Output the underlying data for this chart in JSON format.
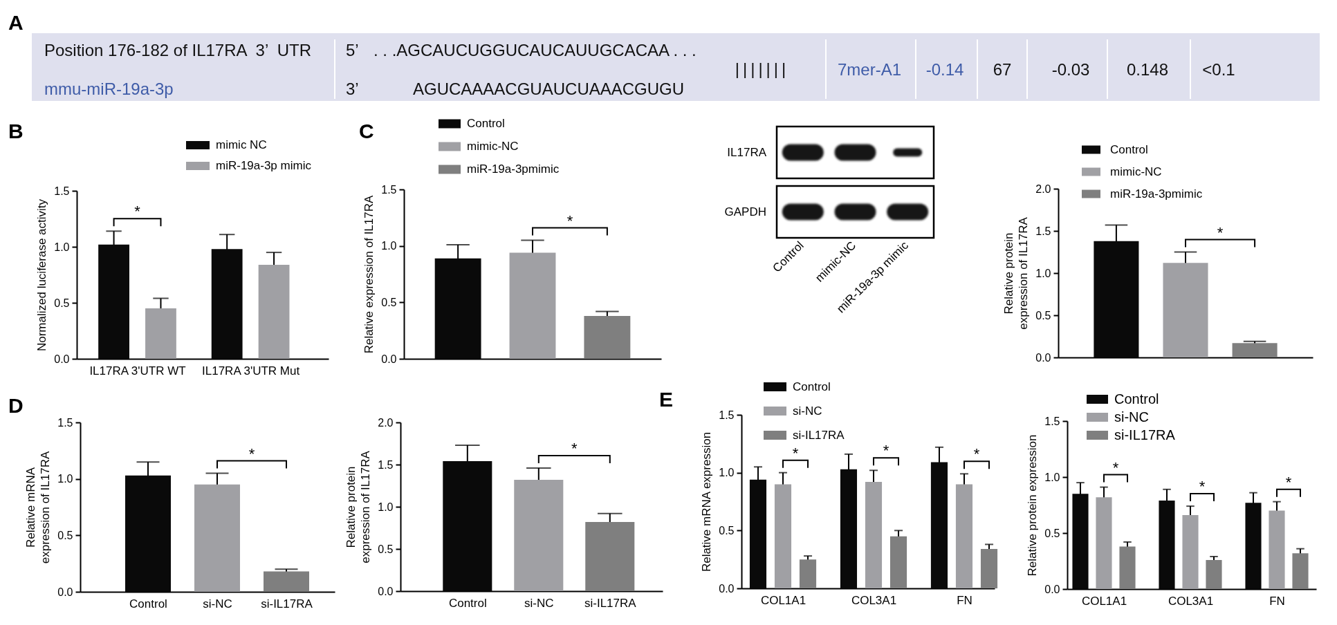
{
  "chart_data": [
    {
      "type": "other",
      "title": "A",
      "annotations": [
        "Position 176-182 of IL17RA  3’  UTR",
        "mmu-miR-19a-3p",
        "5’",
        ". . .AGCAUCUGGUCAUCAUUGCACAA . . .",
        "3’",
        "AGUCAAAACGUAUCUAAACGUGU",
        "|||||||",
        "7mer-A1",
        "-0.14",
        "67",
        "-0.03",
        "0.148",
        "<0.1"
      ]
    },
    {
      "type": "bar",
      "title": "B",
      "ylabel": "Normalized luciferase activity",
      "categories": [
        "IL17RA 3'UTR WT",
        "IL17RA 3'UTR Mut"
      ],
      "series": [
        {
          "name": "mimic NC",
          "color": "#0a0a0a",
          "values": [
            1.02,
            0.98
          ],
          "errors": [
            0.12,
            0.13
          ]
        },
        {
          "name": "miR-19a-3p mimic",
          "color": "#a0a0a4",
          "values": [
            0.45,
            0.84
          ],
          "errors": [
            0.09,
            0.11
          ]
        }
      ],
      "ylim": [
        0,
        1.5
      ],
      "yticks": [
        {
          "value": 0,
          "label": "0.0"
        },
        {
          "value": 0.5,
          "label": "0.5"
        },
        {
          "value": 1,
          "label": "1.0"
        },
        {
          "value": 1.5,
          "label": "1.5"
        }
      ],
      "legend": "top",
      "annotations": [
        "*"
      ]
    },
    {
      "type": "bar",
      "title": "C",
      "ylabel": "Relative expression of IL17RA",
      "categories": [
        null
      ],
      "series": [
        {
          "name": "Control",
          "color": "#0a0a0a",
          "values": [
            0.89
          ],
          "errors": [
            0.12
          ]
        },
        {
          "name": "mimic-NC",
          "color": "#a0a0a4",
          "values": [
            0.94
          ],
          "errors": [
            0.11
          ]
        },
        {
          "name": "miR-19a-3pmimic",
          "color": "#7f7f7f",
          "values": [
            0.38
          ],
          "errors": [
            0.04
          ]
        }
      ],
      "ylim": [
        0,
        1.5
      ],
      "yticks": [
        {
          "value": 0,
          "label": "0.0"
        },
        {
          "value": 0.5,
          "label": "0.5"
        },
        {
          "value": 1,
          "label": "1.0"
        },
        {
          "value": 1.5,
          "label": "1.5"
        }
      ],
      "legend": "top left",
      "annotations": [
        "*"
      ]
    },
    {
      "type": "other",
      "categories": [
        "Control",
        "mimic-NC",
        "miR-19a-3p mimic"
      ],
      "y_categories": [
        "IL17RA",
        "GAPDH"
      ]
    },
    {
      "type": "bar",
      "ylabel": "Relative protein expression of IL17RA",
      "categories": [
        null
      ],
      "series": [
        {
          "name": "Control",
          "color": "#0a0a0a",
          "values": [
            1.38
          ],
          "errors": [
            0.19
          ]
        },
        {
          "name": "mimic-NC",
          "color": "#a0a0a4",
          "values": [
            1.12
          ],
          "errors": [
            0.13
          ]
        },
        {
          "name": "miR-19a-3pmimic",
          "color": "#7f7f7f",
          "values": [
            0.17
          ],
          "errors": [
            0.02
          ]
        }
      ],
      "ylim": [
        0,
        2
      ],
      "yticks": [
        {
          "value": 0,
          "label": "0.0"
        },
        {
          "value": 0.5,
          "label": "0.5"
        },
        {
          "value": 1,
          "label": "1.0"
        },
        {
          "value": 1.5,
          "label": "1.5"
        },
        {
          "value": 2,
          "label": "2.0"
        }
      ],
      "legend": "top left",
      "annotations": [
        "*"
      ]
    },
    {
      "type": "bar",
      "title": "D",
      "ylabel": "Relative mRNA expression of IL17RA",
      "categories": [
        "Control",
        "si-NC",
        "si-IL17RA"
      ],
      "values": [
        1.03,
        0.95,
        0.18
      ],
      "errors": [
        0.12,
        0.1,
        0.02
      ],
      "colors": [
        "#0a0a0a",
        "#a0a0a4",
        "#7f7f7f"
      ],
      "ylim": [
        0,
        1.5
      ],
      "yticks": [
        {
          "value": 0,
          "label": "0.0"
        },
        {
          "value": 0.5,
          "label": "0.5"
        },
        {
          "value": 1,
          "label": "1.0"
        },
        {
          "value": 1.5,
          "label": "1.5"
        }
      ],
      "annotations": [
        "*"
      ]
    },
    {
      "type": "bar",
      "ylabel": "Relative protein expression of IL17RA",
      "categories": [
        "Control",
        "si-NC",
        "si-IL17RA"
      ],
      "values": [
        1.54,
        1.32,
        0.82
      ],
      "errors": [
        0.19,
        0.14,
        0.1
      ],
      "colors": [
        "#0a0a0a",
        "#a0a0a4",
        "#7f7f7f"
      ],
      "ylim": [
        0,
        2
      ],
      "yticks": [
        {
          "value": 0,
          "label": "0.0"
        },
        {
          "value": 0.5,
          "label": "0.5"
        },
        {
          "value": 1,
          "label": "1.0"
        },
        {
          "value": 1.5,
          "label": "1.5"
        },
        {
          "value": 2,
          "label": "2.0"
        }
      ],
      "annotations": [
        "*"
      ]
    },
    {
      "type": "bar",
      "title": "E",
      "ylabel": "Relative mRNA expression",
      "categories": [
        "COL1A1",
        "COL3A1",
        "FN"
      ],
      "series": [
        {
          "name": "Control",
          "color": "#0a0a0a",
          "values": [
            0.94,
            1.03,
            1.09
          ],
          "errors": [
            0.11,
            0.13,
            0.13
          ]
        },
        {
          "name": "si-NC",
          "color": "#a0a0a4",
          "values": [
            0.9,
            0.92,
            0.9
          ],
          "errors": [
            0.1,
            0.1,
            0.09
          ]
        },
        {
          "name": "si-IL17RA",
          "color": "#7f7f7f",
          "values": [
            0.25,
            0.45,
            0.34
          ],
          "errors": [
            0.03,
            0.05,
            0.04
          ]
        }
      ],
      "ylim": [
        0,
        1.5
      ],
      "yticks": [
        {
          "value": 0,
          "label": "0.0"
        },
        {
          "value": 0.5,
          "label": "0.5"
        },
        {
          "value": 1,
          "label": "1.0"
        },
        {
          "value": 1.5,
          "label": "1.5"
        }
      ],
      "legend": "top left",
      "annotations": [
        "*",
        "*",
        "*"
      ]
    },
    {
      "type": "bar",
      "ylabel": "Relative protein expression",
      "categories": [
        "COL1A1",
        "COL3A1",
        "FN"
      ],
      "series": [
        {
          "name": "Control",
          "color": "#0a0a0a",
          "values": [
            0.85,
            0.79,
            0.77
          ],
          "errors": [
            0.1,
            0.1,
            0.09
          ]
        },
        {
          "name": "si-NC",
          "color": "#a0a0a4",
          "values": [
            0.82,
            0.66,
            0.7
          ],
          "errors": [
            0.09,
            0.08,
            0.08
          ]
        },
        {
          "name": "si-IL17RA",
          "color": "#7f7f7f",
          "values": [
            0.38,
            0.26,
            0.32
          ],
          "errors": [
            0.04,
            0.03,
            0.04
          ]
        }
      ],
      "ylim": [
        0,
        1.5
      ],
      "yticks": [
        {
          "value": 0,
          "label": "0.0"
        },
        {
          "value": 0.5,
          "label": "0.5"
        },
        {
          "value": 1,
          "label": "1.0"
        },
        {
          "value": 1.5,
          "label": "1.5"
        }
      ],
      "legend": "top left",
      "annotations": [
        "*",
        "*",
        "*"
      ]
    }
  ]
}
